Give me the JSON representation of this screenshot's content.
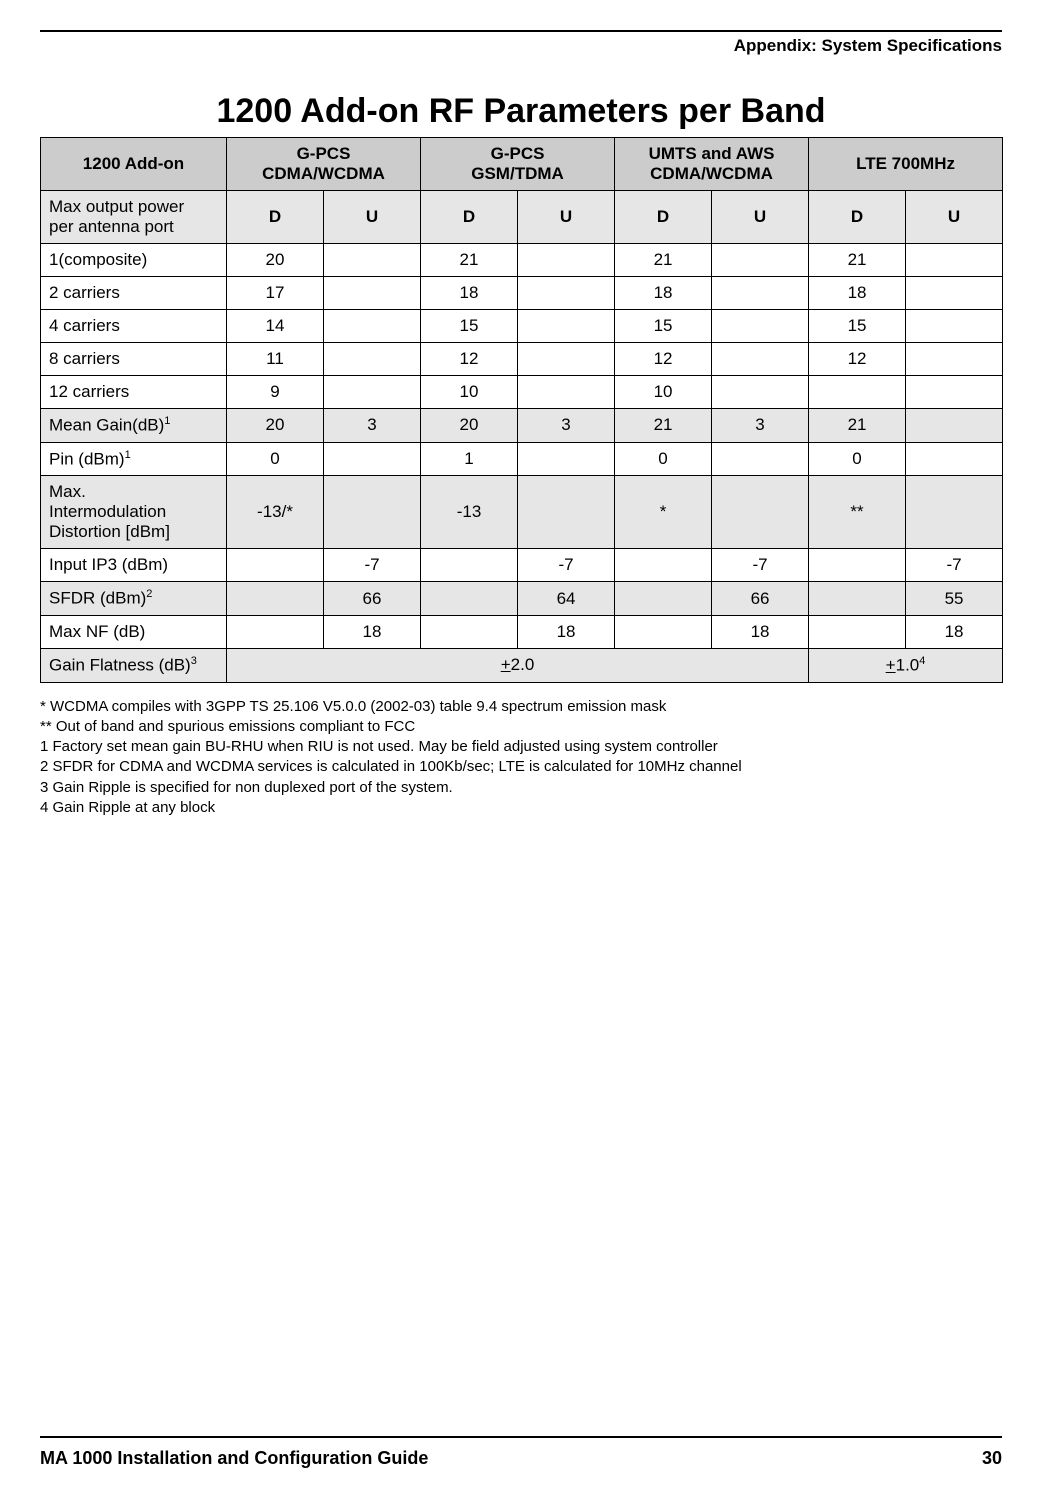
{
  "header": {
    "section": "Appendix: System Specifications"
  },
  "title": "1200 Add-on RF Parameters per Band",
  "table": {
    "top_headers": [
      "1200 Add-on",
      {
        "line1": "G-PCS",
        "line2": "CDMA/WCDMA"
      },
      {
        "line1": "G-PCS",
        "line2": "GSM/TDMA"
      },
      {
        "line1": "UMTS and AWS",
        "line2": "CDMA/WCDMA"
      },
      "LTE 700MHz"
    ],
    "sub_header_label_line1": "Max output power",
    "sub_header_label_line2": "per antenna port",
    "du_labels": [
      "D",
      "U",
      "D",
      "U",
      "D",
      "U",
      "D",
      "U"
    ],
    "rows_plain": [
      {
        "label": "1(composite)",
        "cells": [
          "20",
          "",
          "21",
          "",
          "21",
          "",
          "21",
          ""
        ]
      },
      {
        "label": "2 carriers",
        "cells": [
          "17",
          "",
          "18",
          "",
          "18",
          "",
          "18",
          ""
        ]
      },
      {
        "label": "4 carriers",
        "cells": [
          "14",
          "",
          "15",
          "",
          "15",
          "",
          "15",
          ""
        ]
      },
      {
        "label": "8 carriers",
        "cells": [
          "11",
          "",
          "12",
          "",
          "12",
          "",
          "12",
          ""
        ]
      },
      {
        "label": "12 carriers",
        "cells": [
          "9",
          "",
          "10",
          "",
          "10",
          "",
          "",
          ""
        ]
      }
    ],
    "mean_gain": {
      "label": "Mean Gain(dB)",
      "sup": "1",
      "cells": [
        "20",
        "3",
        "20",
        "3",
        "21",
        "3",
        "21",
        ""
      ]
    },
    "pin": {
      "label": "Pin (dBm)",
      "sup": "1",
      "cells": [
        "0",
        "",
        "1",
        "",
        "0",
        "",
        "0",
        ""
      ]
    },
    "imd": {
      "label_line1": "Max.",
      "label_line2": "Intermodulation",
      "label_line3": "Distortion [dBm]",
      "cells": [
        "-13/*",
        "",
        "-13",
        "",
        "*",
        "",
        "**",
        ""
      ]
    },
    "input_ip3": {
      "label": "Input IP3 (dBm)",
      "cells": [
        "",
        "-7",
        "",
        "-7",
        "",
        "-7",
        "",
        "-7"
      ]
    },
    "sfdr": {
      "label": "SFDR (dBm)",
      "sup": "2",
      "cells": [
        "",
        "66",
        "",
        "64",
        "",
        "66",
        "",
        "55"
      ]
    },
    "max_nf": {
      "label": "Max NF (dB)",
      "cells": [
        "",
        "18",
        "",
        "18",
        "",
        "18",
        "",
        "18"
      ]
    },
    "gain_flat": {
      "label": "Gain Flatness (dB)",
      "sup": "3",
      "span1_pre": "+",
      "span1_val": "2.0",
      "span2_pre": "+",
      "span2_val": "1.0",
      "span2_sup": "4"
    }
  },
  "footnotes": [
    "* WCDMA compiles with 3GPP TS 25.106 V5.0.0 (2002-03) table 9.4 spectrum emission mask",
    "** Out of band and spurious emissions compliant to FCC",
    "1 Factory set mean gain BU-RHU when RIU is not used.  May be field adjusted using system controller",
    "2 SFDR for CDMA and WCDMA services is calculated in 100Kb/sec; LTE is calculated for 10MHz channel",
    "3 Gain Ripple is specified for non duplexed port of the system.",
    "4 Gain Ripple at any block"
  ],
  "footer": {
    "doc_title": "MA 1000 Installation and Configuration Guide",
    "page_number": "30"
  },
  "colors": {
    "header_bg": "#cccccc",
    "shade_bg": "#e6e6e6",
    "border": "#000000",
    "text": "#000000",
    "background": "#ffffff"
  }
}
